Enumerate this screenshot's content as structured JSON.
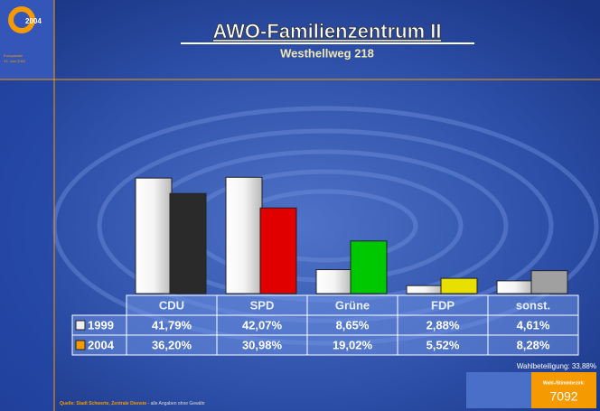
{
  "chart_data": {
    "type": "bar",
    "title": "AWO-Familienzentrum II",
    "subtitle": "Westhellweg 218",
    "logo_text": "2004",
    "logo_caption": [
      "Europawahl",
      "13. Juni 2004"
    ],
    "categories": [
      "CDU",
      "SPD",
      "Grüne",
      "FDP",
      "sonst."
    ],
    "series": [
      {
        "name": "1999",
        "color": "#f0f0f0",
        "bar_colors": [
          "#e8e8e8",
          "#e8e8e8",
          "#e8e8e8",
          "#e8e8e8",
          "#e8e8e8"
        ],
        "values": [
          41.79,
          42.07,
          8.65,
          2.88,
          4.61
        ],
        "value_labels": [
          "41,79%",
          "42,07%",
          "8,65%",
          "2,88%",
          "4,61%"
        ]
      },
      {
        "name": "2004",
        "color": "#f59a00",
        "bar_colors": [
          "#2a2a2a",
          "#e00000",
          "#00c800",
          "#e8e000",
          "#a0a0a0"
        ],
        "values": [
          36.2,
          30.98,
          19.02,
          5.52,
          8.28
        ],
        "value_labels": [
          "36,20%",
          "30,98%",
          "19,02%",
          "5,52%",
          "8,28%"
        ]
      }
    ],
    "turnout": "Wahlbeteiligung: 33,88%",
    "district_label": "Wahl-/Stimmbezirk:",
    "district": "7092",
    "source": "Quelle: Stadt Schwerte, Zentrale Dienste",
    "source_note": " - alle Angaben ohne Gewähr"
  }
}
